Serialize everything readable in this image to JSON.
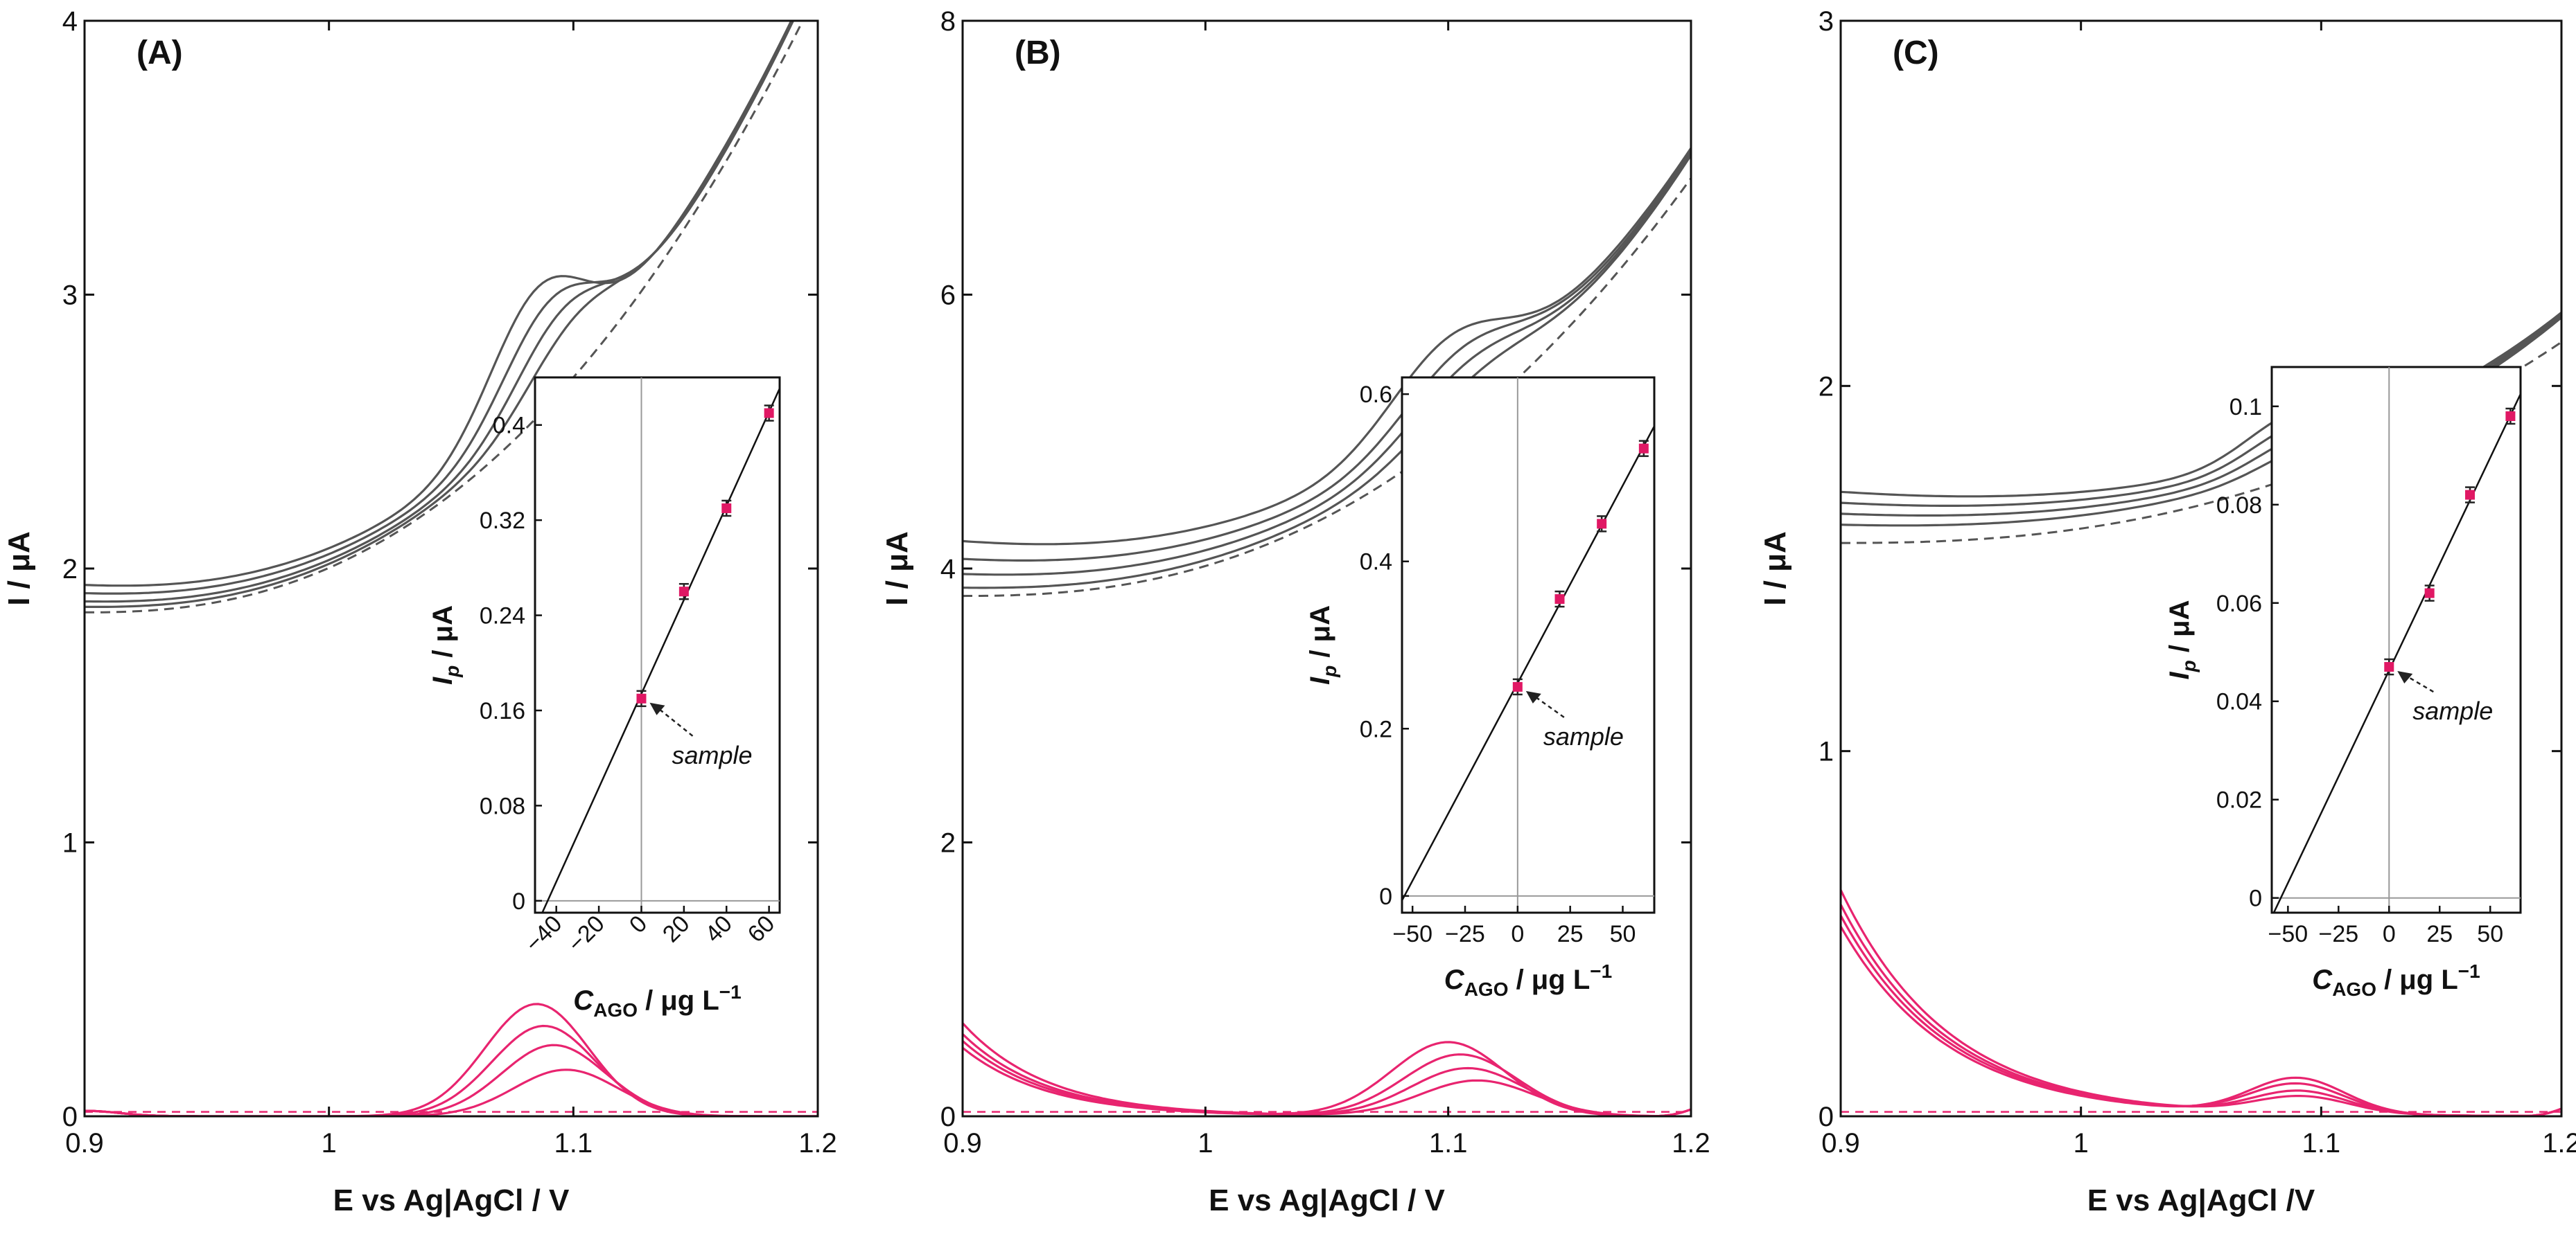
{
  "chart_data": [
    {
      "type": "line",
      "panel_label": "(A)",
      "xlabel": "E vs Ag|AgCl / V",
      "ylabel": "I / μA",
      "xlim": [
        0.9,
        1.2
      ],
      "ylim": [
        0,
        4
      ],
      "xticks": [
        0.9,
        1,
        1.1,
        1.2
      ],
      "xtick_labels": [
        "0.9",
        "1",
        "1.1",
        "1.2"
      ],
      "yticks": [
        0,
        1,
        2,
        3,
        4
      ],
      "ytick_labels": [
        "0",
        "1",
        "2",
        "3",
        "4"
      ],
      "gray_curves": {
        "description": "raw voltammograms (solid: sample + standard additions, dashed: blank)",
        "start": [
          1.94,
          1.91,
          1.88,
          1.86
        ],
        "peak_height": [
          0.42,
          0.34,
          0.27,
          0.2
        ],
        "peak_center": [
          1.085,
          1.09,
          1.095,
          1.1
        ],
        "peak_width": 0.028,
        "dashed_start": 1.84,
        "dashed_end_at_x": [
          1.195,
          4.02
        ]
      },
      "pink_curves": {
        "description": "baseline-corrected voltammograms",
        "peak_heights": [
          0.17,
          0.26,
          0.33,
          0.41
        ],
        "peak_centers": [
          1.097,
          1.092,
          1.088,
          1.085
        ],
        "peak_width": 0.03
      },
      "inset": {
        "type": "scatter",
        "xlabel_main": "C",
        "xlabel_sub": "AGO",
        "xlabel_rest": " / μg L",
        "xlabel_sup": "−1",
        "ylabel_main": "I",
        "ylabel_sub": "p",
        "ylabel_rest": " / μA",
        "xlim": [
          -50,
          65
        ],
        "ylim": [
          -0.01,
          0.44
        ],
        "xticks": [
          -40,
          -20,
          0,
          20,
          40,
          60
        ],
        "xtick_labels": [
          "−40",
          "−20",
          "0",
          "20",
          "40",
          "60"
        ],
        "yticks": [
          0,
          0.08,
          0.16,
          0.24,
          0.32,
          0.4
        ],
        "ytick_labels": [
          "0",
          "0.08",
          "0.16",
          "0.24",
          "0.32",
          "0.4"
        ],
        "points": [
          {
            "x": 0,
            "y": 0.17
          },
          {
            "x": 20,
            "y": 0.26
          },
          {
            "x": 40,
            "y": 0.33
          },
          {
            "x": 60,
            "y": 0.41
          }
        ],
        "annotation": "sample"
      }
    },
    {
      "type": "line",
      "panel_label": "(B)",
      "xlabel": "E vs Ag|AgCl / V",
      "ylabel": "I / μA",
      "xlim": [
        0.9,
        1.2
      ],
      "ylim": [
        0,
        8
      ],
      "xticks": [
        0.9,
        1,
        1.1,
        1.2
      ],
      "xtick_labels": [
        "0.9",
        "1",
        "1.1",
        "1.2"
      ],
      "yticks": [
        0,
        2,
        4,
        6,
        8
      ],
      "ytick_labels": [
        "0",
        "2",
        "4",
        "6",
        "8"
      ],
      "gray_curves": {
        "description": "raw voltammograms (solid: sample + standard additions, dashed: blank)",
        "start": [
          4.2,
          4.07,
          3.96,
          3.86
        ],
        "peak_height": [
          0.55,
          0.45,
          0.36,
          0.26
        ],
        "peak_center": [
          1.1,
          1.105,
          1.108,
          1.112
        ],
        "peak_width": 0.035,
        "dashed_start": 3.8,
        "dashed_end_at_x": [
          1.2,
          6.85
        ]
      },
      "pink_curves": {
        "description": "baseline-corrected voltammograms",
        "peak_heights": [
          0.26,
          0.35,
          0.45,
          0.54
        ],
        "peak_centers": [
          1.112,
          1.108,
          1.105,
          1.1
        ],
        "peak_width": 0.033
      },
      "inset": {
        "type": "scatter",
        "xlabel_main": "C",
        "xlabel_sub": "AGO",
        "xlabel_rest": " / μg L",
        "xlabel_sup": "−1",
        "ylabel_main": "I",
        "ylabel_sub": "p",
        "ylabel_rest": " / μA",
        "xlim": [
          -55,
          65
        ],
        "ylim": [
          -0.02,
          0.62
        ],
        "xticks": [
          -50,
          -25,
          0,
          25,
          50
        ],
        "xtick_labels": [
          "−50",
          "−25",
          "0",
          "25",
          "50"
        ],
        "yticks": [
          0,
          0.2,
          0.4,
          0.6
        ],
        "ytick_labels": [
          "0",
          "0.2",
          "0.4",
          "0.6"
        ],
        "points": [
          {
            "x": 0,
            "y": 0.25
          },
          {
            "x": 20,
            "y": 0.355
          },
          {
            "x": 40,
            "y": 0.445
          },
          {
            "x": 60,
            "y": 0.535
          }
        ],
        "annotation": "sample"
      }
    },
    {
      "type": "line",
      "panel_label": "(C)",
      "xlabel": "E vs Ag|AgCl /V",
      "ylabel": "I / μA",
      "xlim": [
        0.9,
        1.2
      ],
      "ylim": [
        0,
        3
      ],
      "xticks": [
        0.9,
        1,
        1.1,
        1.2
      ],
      "xtick_labels": [
        "0.9",
        "1",
        "1.1",
        "1.2"
      ],
      "yticks": [
        0,
        1,
        2,
        3
      ],
      "ytick_labels": [
        "0",
        "1",
        "2",
        "3"
      ],
      "gray_curves": {
        "description": "raw voltammograms (solid: sample + standard additions, dashed: blank)",
        "start": [
          1.71,
          1.68,
          1.65,
          1.62
        ],
        "peak_height": [
          0.11,
          0.09,
          0.07,
          0.05
        ],
        "peak_center": [
          1.09,
          1.092,
          1.094,
          1.096
        ],
        "peak_width": 0.03,
        "dashed_start": 1.57,
        "dashed_end_at_x": [
          1.2,
          2.12
        ]
      },
      "pink_curves": {
        "description": "baseline-corrected voltammograms",
        "peak_heights": [
          0.047,
          0.062,
          0.082,
          0.098
        ],
        "peak_centers": [
          1.092,
          1.091,
          1.09,
          1.09
        ],
        "peak_width": 0.028,
        "start_values": [
          0.62,
          0.58,
          0.55,
          0.52
        ]
      },
      "inset": {
        "type": "scatter",
        "xlabel_main": "C",
        "xlabel_sub": "AGO",
        "xlabel_rest": " / μg L",
        "xlabel_sup": "−1",
        "ylabel_main": "I",
        "ylabel_sub": "p",
        "ylabel_rest": " / μA",
        "xlim": [
          -58,
          65
        ],
        "ylim": [
          -0.003,
          0.108
        ],
        "xticks": [
          -50,
          -25,
          0,
          25,
          50
        ],
        "xtick_labels": [
          "−50",
          "−25",
          "0",
          "25",
          "50"
        ],
        "yticks": [
          0,
          0.02,
          0.04,
          0.06,
          0.08,
          0.1
        ],
        "ytick_labels": [
          "0",
          "0.02",
          "0.04",
          "0.06",
          "0.08",
          "0.1"
        ],
        "points": [
          {
            "x": 0,
            "y": 0.047
          },
          {
            "x": 20,
            "y": 0.062
          },
          {
            "x": 40,
            "y": 0.082
          },
          {
            "x": 60,
            "y": 0.098
          }
        ],
        "annotation": "sample"
      }
    }
  ],
  "colors": {
    "gray_curve": "#555555",
    "pink_curve": "#e8246f",
    "marker": "#e01864",
    "axis": "#111111",
    "zero_line": "#999999"
  }
}
